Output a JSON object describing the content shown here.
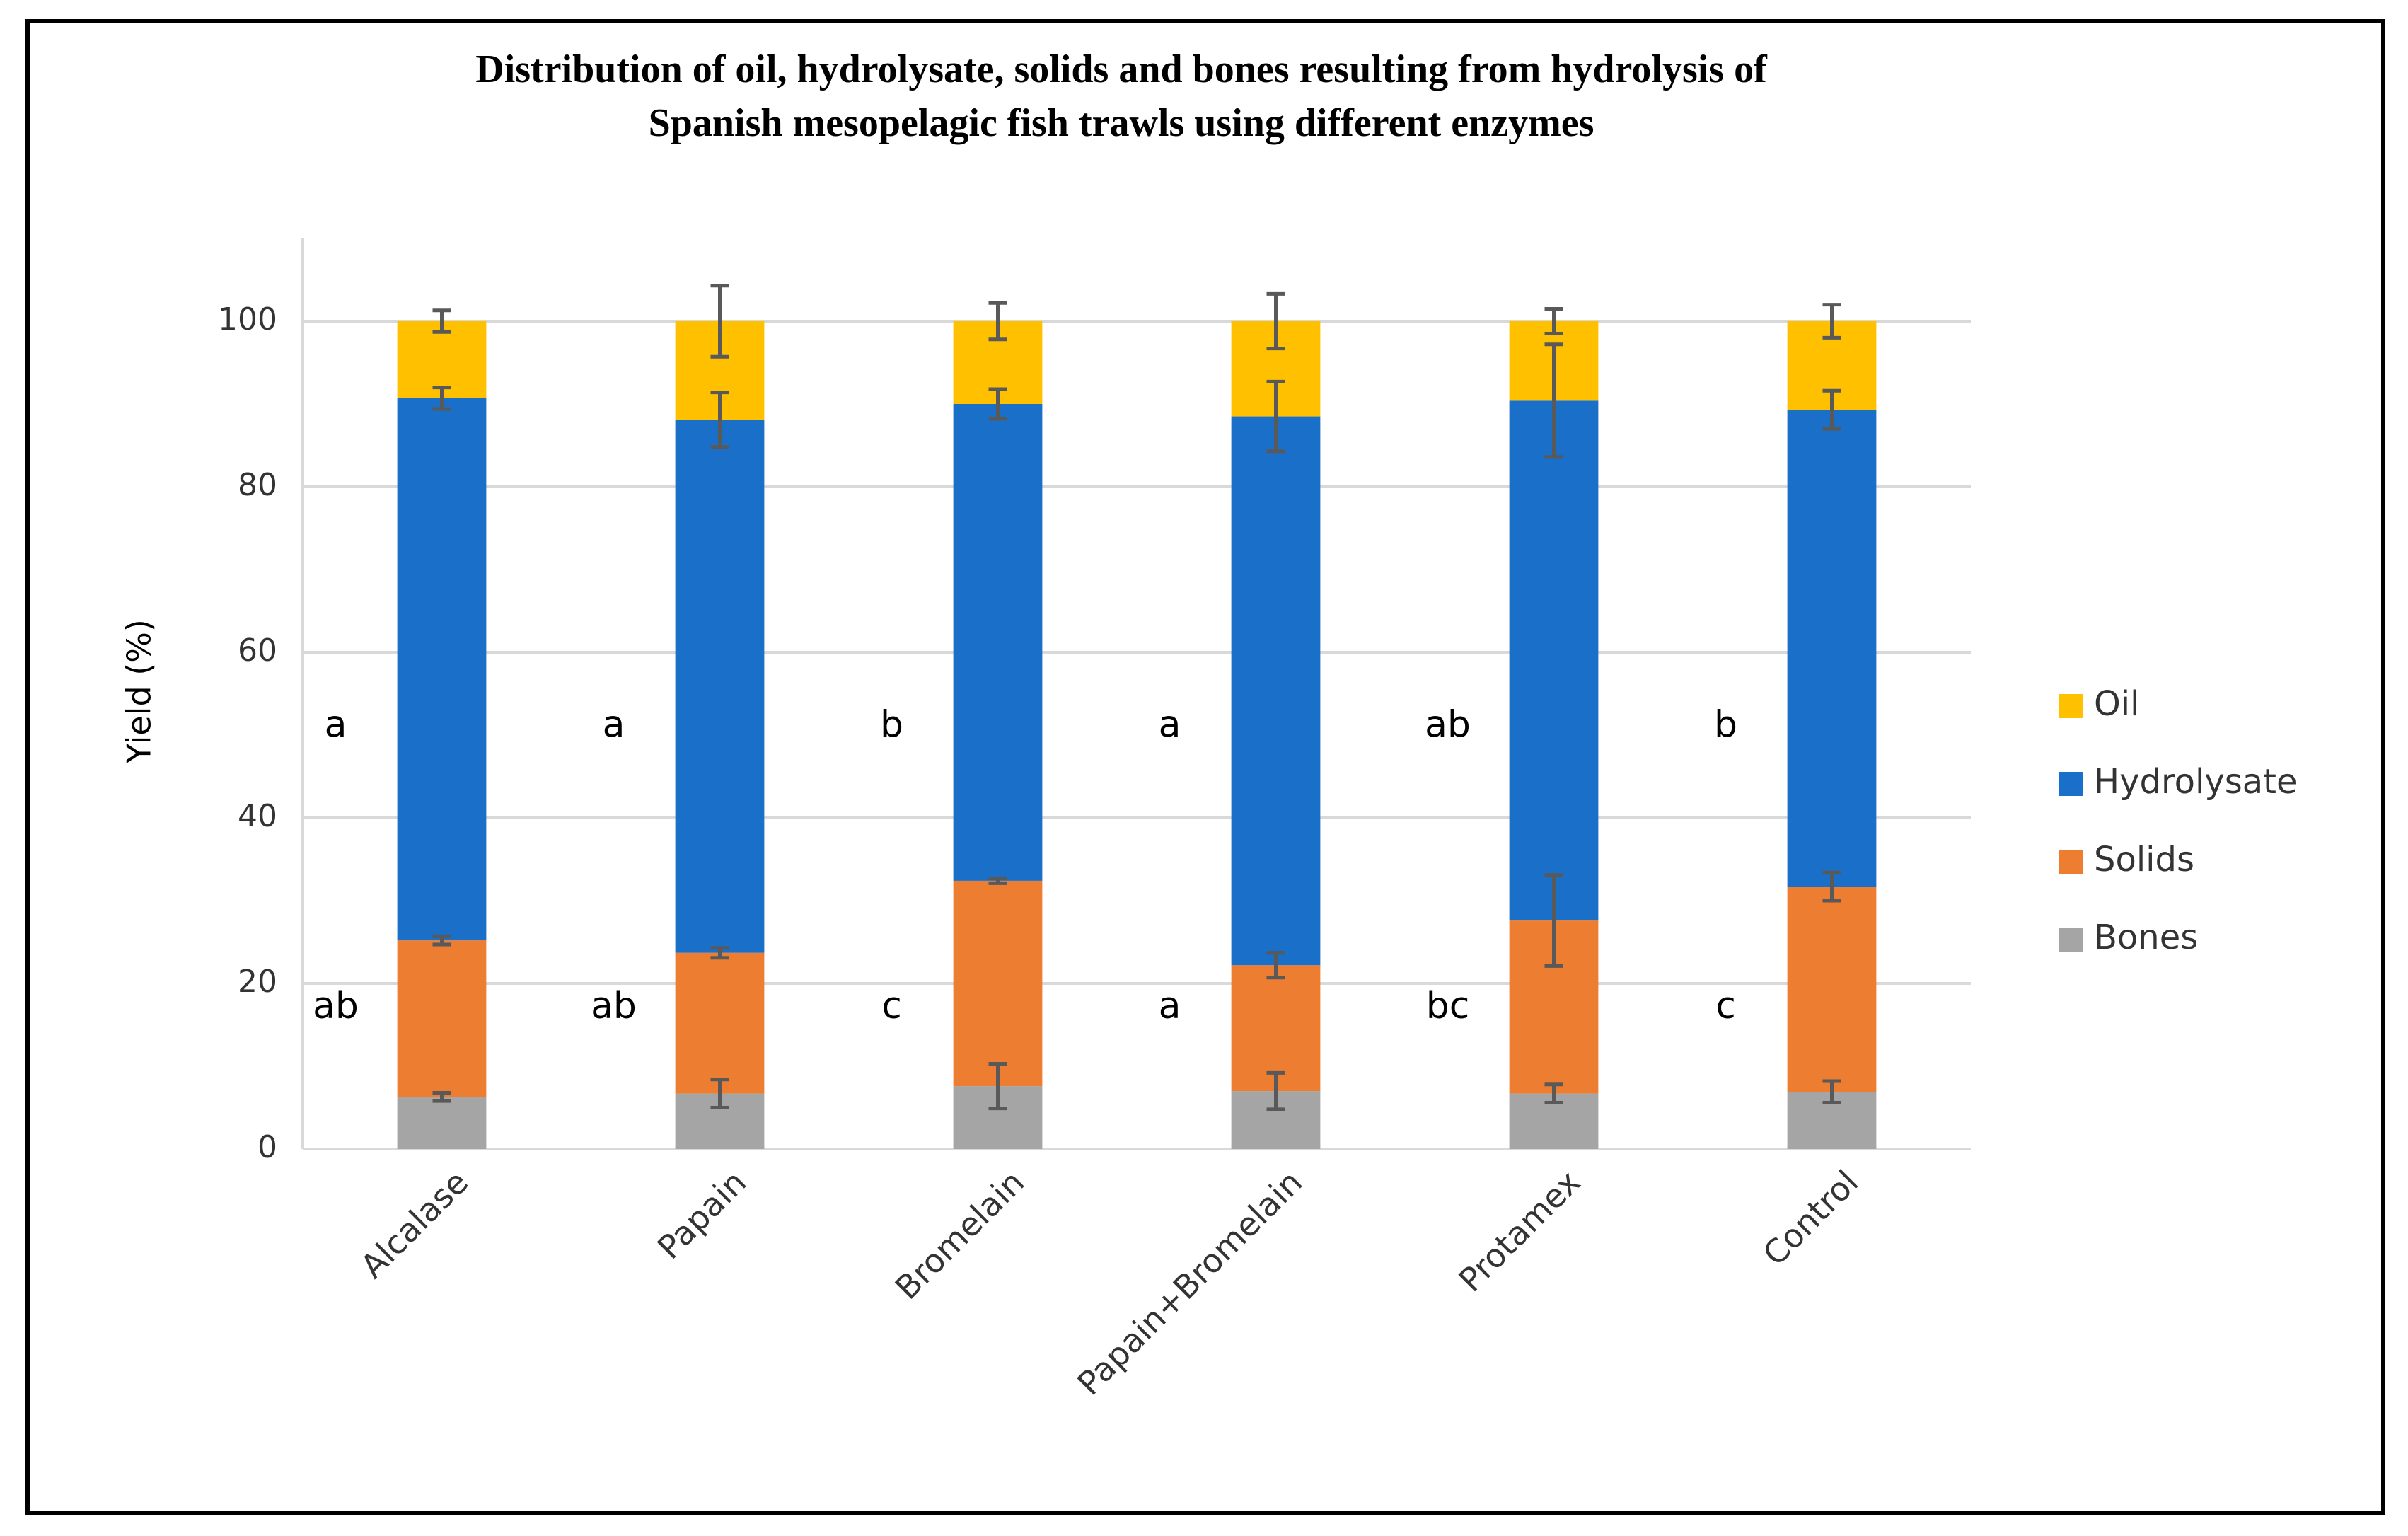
{
  "chart_data": {
    "type": "stacked_bar",
    "title": "Distribution of oil, hydrolysate, solids and bones resulting from hydrolysis of\nSpanish mesopelagic fish trawls using different enzymes",
    "y_label": "Yield (%)",
    "categories": [
      "Alcalase",
      "Papain",
      "Bromelain",
      "Papain+Bromelain",
      "Protamex",
      "Control"
    ],
    "series": [
      {
        "name": "Bones",
        "color": "#a5a5a5",
        "values": [
          6.3,
          6.7,
          7.6,
          7.0,
          6.7,
          6.9
        ],
        "errors": [
          0.5,
          1.7,
          2.7,
          2.2,
          1.1,
          1.3
        ]
      },
      {
        "name": "Solids",
        "color": "#ed7d31",
        "values": [
          18.9,
          17.0,
          24.8,
          15.2,
          20.9,
          24.8
        ],
        "errors": [
          0.5,
          0.6,
          0.3,
          1.5,
          5.5,
          1.7
        ]
      },
      {
        "name": "Hydrolysate",
        "color": "#1a6fc9",
        "values": [
          65.5,
          64.4,
          57.6,
          66.3,
          62.8,
          57.6
        ],
        "errors": [
          1.3,
          3.3,
          1.8,
          4.2,
          6.8,
          2.3
        ]
      },
      {
        "name": "Oil",
        "color": "#ffc000",
        "values": [
          9.3,
          11.9,
          10.0,
          11.5,
          9.6,
          10.7
        ],
        "errors": [
          1.3,
          4.3,
          2.2,
          3.3,
          1.5,
          2.0
        ]
      }
    ],
    "letters_upper": [
      "a",
      "a",
      "b",
      "a",
      "ab",
      "b"
    ],
    "letters_lower": [
      "ab",
      "ab",
      "c",
      "a",
      "bc",
      "c"
    ],
    "ylim": [
      0,
      110
    ],
    "yticks": [
      0,
      20,
      40,
      60,
      80,
      100
    ],
    "grid": true,
    "legend": "right"
  }
}
